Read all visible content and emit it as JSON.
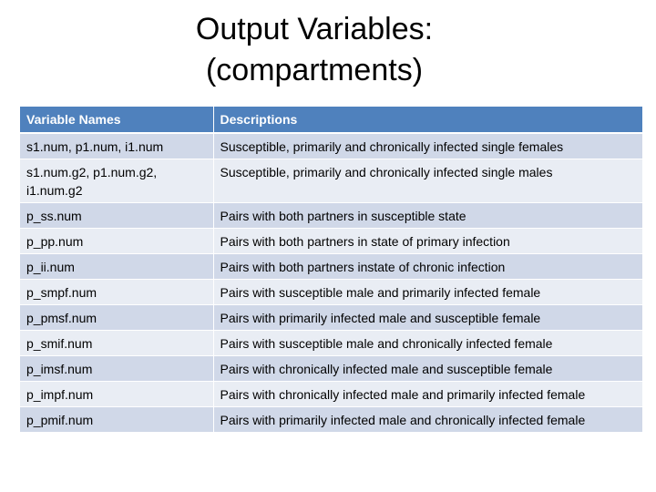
{
  "slide": {
    "title_line1": "Output Variables:",
    "title_line2": "(compartments)"
  },
  "table": {
    "headers": [
      "Variable Names",
      "Descriptions"
    ],
    "rows": [
      {
        "name": "s1.num, p1.num, i1.num",
        "description": "Susceptible, primarily and chronically infected single females"
      },
      {
        "name": "s1.num.g2, p1.num.g2, i1.num.g2",
        "description": "Susceptible, primarily and chronically infected single males"
      },
      {
        "name": "p_ss.num",
        "description": "Pairs with both partners in susceptible state"
      },
      {
        "name": "p_pp.num",
        "description": "Pairs with both partners in state of primary infection"
      },
      {
        "name": "p_ii.num",
        "description": "Pairs with both partners instate of chronic infection"
      },
      {
        "name": "p_smpf.num",
        "description": "Pairs with susceptible male and primarily infected female"
      },
      {
        "name": "p_pmsf.num",
        "description": "Pairs with primarily infected male and susceptible female"
      },
      {
        "name": "p_smif.num",
        "description": "Pairs with susceptible male and chronically infected female"
      },
      {
        "name": "p_imsf.num",
        "description": "Pairs with chronically infected male and susceptible female"
      },
      {
        "name": "p_impf.num",
        "description": "Pairs with chronically infected male and primarily infected female"
      },
      {
        "name": "p_pmif.num",
        "description": "Pairs with primarily infected male and chronically infected female"
      }
    ]
  },
  "colors": {
    "header_background": "#4f81bd",
    "row_band_dark": "#d0d8e8",
    "row_band_light": "#e9edf4"
  }
}
